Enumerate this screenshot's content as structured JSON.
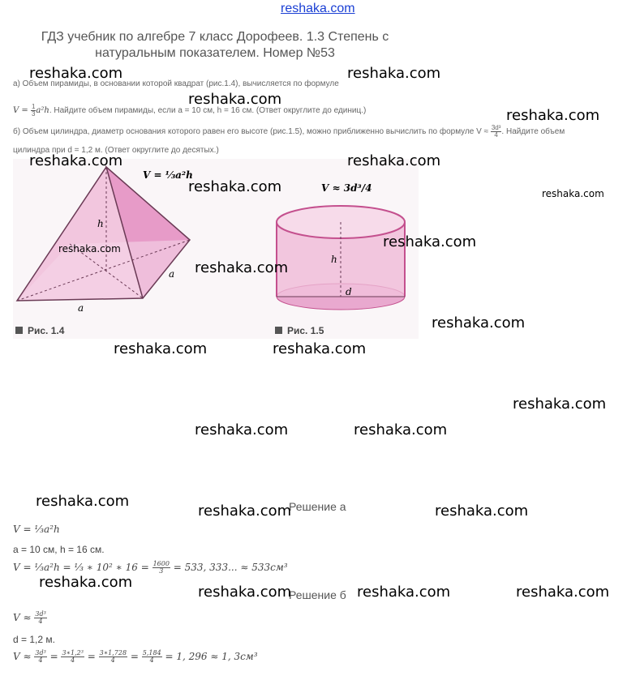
{
  "site_link": "reshaka.com",
  "title": "ГДЗ учебник по алгебре 7 класс Дорофеев. 1.3 Степень с натуральным показателем. Номер №53",
  "watermark": "reshaka.com",
  "task": {
    "a_line1": "а) Объем пирамиды, в основании которой квадрат (рис.1.4), вычисляется по формуле",
    "a_formula_lhs": "V = ",
    "a_formula_rhs": "a²h",
    "a_line2": ". Найдите объем пирамиды, если a = 10 см, h = 16 см. (Ответ округлите до единиц.)",
    "b_line1": "б) Объем цилиндра, диаметр основания которого равен его высоте (рис.1.5), можно приближенно вычислить по формуле V ≈",
    "b_line1_end": ". Найдите объем",
    "b_line2": "цилиндра при d = 1,2 м. (Ответ округлите до десятых.)"
  },
  "figures": {
    "fig1_caption": "Рис. 1.4",
    "fig2_caption": "Рис. 1.5",
    "fig1_formula": "V = ⅓a²h",
    "fig2_formula": "V ≈ 3d³/4",
    "label_h": "h",
    "label_a": "a",
    "label_d": "d"
  },
  "solution_a": {
    "heading": "Решение а",
    "line1": "V = ⅓a²h",
    "line2": "a = 10 см, h = 16 см.",
    "line3_a": "V = ⅓a²h = ⅓ ∗ 10² ∗ 16 = ",
    "line3_num": "1600",
    "line3_den": "3",
    "line3_b": " = 533, 333... ≈ 533см³"
  },
  "solution_b": {
    "heading": "Решение б",
    "line1": "V ≈ ",
    "line1_num": "3d³",
    "line1_den": "4",
    "line2": "d = 1,2 м.",
    "line3_a": "V ≈ ",
    "fracs": [
      {
        "num": "3d³",
        "den": "4"
      },
      {
        "num": "3∗1,2³",
        "den": "4"
      },
      {
        "num": "3∗1,728",
        "den": "4"
      },
      {
        "num": "5,184",
        "den": "4"
      }
    ],
    "line3_b": " = 1, 296 ≈ 1, 3см³"
  },
  "colors": {
    "pink": "#e79bc8",
    "link": "#1a3fd4"
  }
}
